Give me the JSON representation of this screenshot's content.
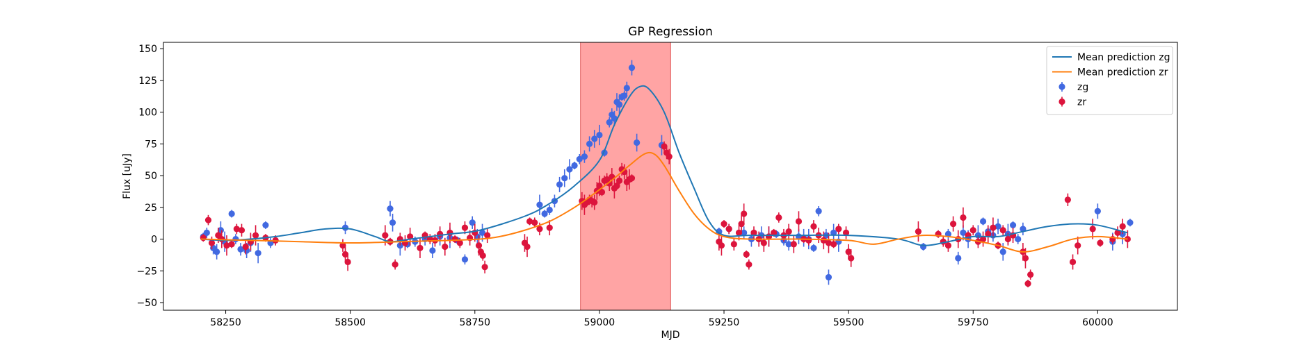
{
  "chart_data": {
    "type": "scatter",
    "title": "GP Regression",
    "xlabel": "MJD",
    "ylabel": "Flux [uJy]",
    "xlim": [
      58125,
      60160
    ],
    "ylim": [
      -56,
      155
    ],
    "xticks": [
      58250,
      58500,
      58750,
      59000,
      59250,
      59500,
      59750,
      60000
    ],
    "yticks": [
      -50,
      -25,
      0,
      25,
      50,
      75,
      100,
      125,
      150
    ],
    "shaded_region": {
      "x0": 58962,
      "x1": 59143,
      "color": "#ff9a9a"
    },
    "legend": {
      "placement": "top-right",
      "entries": [
        {
          "label": "Mean prediction zg",
          "kind": "line",
          "color": "#1f77b4"
        },
        {
          "label": "Mean prediction zr",
          "kind": "line",
          "color": "#ff7f0e"
        },
        {
          "label": "zg",
          "kind": "marker",
          "color": "#4169e1"
        },
        {
          "label": "zr",
          "kind": "marker",
          "color": "#dc143c"
        }
      ]
    },
    "lines": [
      {
        "name": "Mean prediction zg",
        "color": "#1f77b4",
        "x": [
          58200,
          58250,
          58300,
          58350,
          58400,
          58450,
          58500,
          58550,
          58580,
          58620,
          58700,
          58760,
          58850,
          58900,
          58950,
          59000,
          59030,
          59060,
          59080,
          59100,
          59130,
          59160,
          59190,
          59220,
          59250,
          59300,
          59400,
          59500,
          59600,
          59650,
          59700,
          59750,
          59800,
          59850,
          59900,
          59950,
          60000,
          60060
        ],
        "y": [
          0,
          -1,
          0,
          2,
          5,
          8,
          8,
          2,
          -2,
          0,
          4,
          7,
          18,
          28,
          42,
          62,
          90,
          112,
          120,
          118,
          100,
          68,
          40,
          14,
          3,
          3,
          3,
          3,
          0,
          -5,
          -2,
          2,
          2,
          6,
          10,
          12,
          11,
          5
        ]
      },
      {
        "name": "Mean prediction zr",
        "color": "#ff7f0e",
        "x": [
          58200,
          58300,
          58400,
          58500,
          58600,
          58700,
          58760,
          58800,
          58850,
          58900,
          58950,
          58990,
          59030,
          59060,
          59090,
          59110,
          59130,
          59160,
          59190,
          59220,
          59250,
          59300,
          59400,
          59500,
          59550,
          59600,
          59650,
          59700,
          59750,
          59800,
          59850,
          59900,
          59950,
          60000,
          60060
        ],
        "y": [
          0,
          -1,
          -2,
          -3,
          -2,
          -1,
          0,
          2,
          7,
          14,
          25,
          36,
          48,
          58,
          67,
          67,
          58,
          38,
          20,
          8,
          2,
          0,
          0,
          -1,
          -4,
          0,
          3,
          2,
          -1,
          -5,
          -10,
          -6,
          0,
          2,
          0
        ]
      }
    ],
    "series": [
      {
        "name": "zg",
        "color": "#4169e1",
        "x": [
          58205,
          58212,
          58225,
          58232,
          58240,
          58248,
          58262,
          58270,
          58280,
          58292,
          58300,
          58315,
          58330,
          58340,
          58490,
          58580,
          58585,
          58600,
          58615,
          58630,
          58650,
          58665,
          58680,
          58700,
          58715,
          58730,
          58745,
          58755,
          58765,
          58880,
          58890,
          58900,
          58910,
          58920,
          58930,
          58940,
          58950,
          58960,
          58970,
          58980,
          58990,
          59000,
          59010,
          59020,
          59025,
          59030,
          59035,
          59040,
          59045,
          59050,
          59055,
          59065,
          59075,
          59125,
          59240,
          59260,
          59290,
          59305,
          59325,
          59340,
          59355,
          59370,
          59380,
          59400,
          59410,
          59420,
          59430,
          59440,
          59455,
          59460,
          59470,
          59480,
          59650,
          59700,
          59720,
          59730,
          59740,
          59760,
          59770,
          59780,
          59790,
          59800,
          59810,
          59820,
          59830,
          59840,
          59850,
          60000,
          60030,
          60050,
          60065
        ],
        "y": [
          2,
          5,
          -7,
          -10,
          7,
          -2,
          20,
          0,
          -8,
          -9,
          -3,
          -11,
          11,
          -3,
          9,
          24,
          13,
          -5,
          -4,
          -2,
          0,
          -9,
          2,
          1,
          -1,
          -16,
          13,
          2,
          5,
          27,
          20,
          23,
          30,
          43,
          48,
          55,
          58,
          63,
          65,
          75,
          79,
          82,
          68,
          92,
          98,
          95,
          108,
          106,
          112,
          113,
          119,
          135,
          76,
          74,
          6,
          8,
          5,
          0,
          3,
          2,
          4,
          -1,
          -4,
          2,
          1,
          0,
          -7,
          22,
          3,
          -30,
          5,
          -2,
          -6,
          4,
          -15,
          5,
          0,
          3,
          14,
          6,
          3,
          10,
          -10,
          4,
          11,
          0,
          8,
          22,
          -2,
          4,
          13
        ]
      },
      {
        "name": "zr",
        "color": "#dc143c",
        "x": [
          58205,
          58215,
          58222,
          58235,
          58242,
          58252,
          58262,
          58272,
          58282,
          58290,
          58300,
          58310,
          58330,
          58350,
          58485,
          58490,
          58495,
          58570,
          58580,
          58590,
          58600,
          58610,
          58620,
          58640,
          58650,
          58660,
          58670,
          58680,
          58690,
          58700,
          58710,
          58720,
          58730,
          58740,
          58750,
          58758,
          58762,
          58766,
          58770,
          58775,
          58850,
          58855,
          58860,
          58870,
          58880,
          58900,
          58965,
          58970,
          58975,
          58980,
          58985,
          58990,
          58995,
          59000,
          59005,
          59010,
          59015,
          59020,
          59025,
          59030,
          59035,
          59040,
          59045,
          59050,
          59055,
          59060,
          59065,
          59130,
          59135,
          59140,
          59240,
          59245,
          59250,
          59260,
          59270,
          59280,
          59285,
          59290,
          59295,
          59300,
          59310,
          59320,
          59330,
          59340,
          59350,
          59360,
          59370,
          59380,
          59390,
          59400,
          59410,
          59420,
          59430,
          59440,
          59450,
          59460,
          59470,
          59480,
          59495,
          59500,
          59505,
          59640,
          59680,
          59690,
          59700,
          59710,
          59720,
          59730,
          59740,
          59750,
          59760,
          59770,
          59780,
          59790,
          59800,
          59810,
          59820,
          59830,
          59850,
          59855,
          59860,
          59865,
          59940,
          59950,
          59960,
          59990,
          60005,
          60030,
          60040,
          60050,
          60060
        ],
        "y": [
          1,
          15,
          -3,
          3,
          0,
          -5,
          -4,
          8,
          7,
          -6,
          -2,
          3,
          1,
          -1,
          -5,
          -12,
          -18,
          3,
          -2,
          -20,
          0,
          -3,
          2,
          -7,
          3,
          0,
          -1,
          4,
          -6,
          5,
          0,
          -3,
          9,
          1,
          5,
          -5,
          -10,
          -13,
          -22,
          3,
          -3,
          -6,
          14,
          13,
          8,
          9,
          30,
          27,
          29,
          31,
          30,
          29,
          38,
          42,
          37,
          46,
          47,
          44,
          49,
          40,
          42,
          46,
          55,
          53,
          45,
          47,
          48,
          73,
          68,
          65,
          -2,
          -5,
          12,
          8,
          -4,
          5,
          12,
          20,
          -12,
          -20,
          5,
          0,
          -3,
          2,
          5,
          17,
          3,
          6,
          -4,
          14,
          0,
          -1,
          10,
          3,
          -1,
          -3,
          -4,
          8,
          5,
          -10,
          -15,
          6,
          4,
          -2,
          -5,
          12,
          0,
          17,
          3,
          7,
          -2,
          0,
          4,
          9,
          -5,
          7,
          0,
          3,
          -10,
          -15,
          -35,
          -28,
          31,
          -18,
          -5,
          8,
          -3,
          0,
          5,
          10,
          0
        ]
      }
    ]
  }
}
